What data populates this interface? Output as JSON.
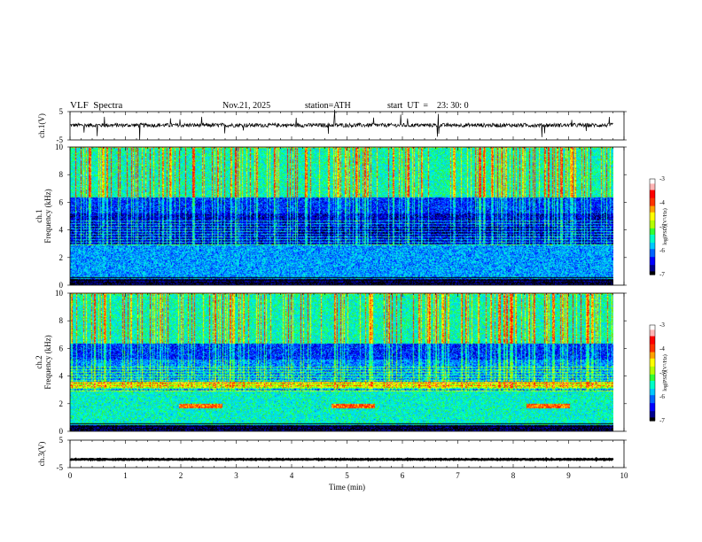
{
  "header": {
    "title": "VLF  Spectra",
    "date": "Nov.21, 2025",
    "station": "station=ATH",
    "start": "start  UT  =    23: 30: 0"
  },
  "chart_data": {
    "type": "heatmap",
    "title": "VLF  Spectra",
    "xlabel": "Time  (min)",
    "xlim": [
      0,
      10
    ],
    "xticks": [
      "0",
      "1",
      "2",
      "3",
      "4",
      "5",
      "6",
      "7",
      "8",
      "9",
      "10"
    ],
    "data_end_min": 9.8,
    "panels": [
      {
        "id": "ch1-voltage",
        "kind": "line",
        "ylabel": "ch.1(V)",
        "ylim": [
          -5,
          5
        ],
        "yticks": [
          "5",
          "-5"
        ],
        "baseline_v": 0.2
      },
      {
        "id": "ch1-spectrogram",
        "kind": "heatmap",
        "ylabel_top": "ch.1",
        "ylabel": "Frequency  (kHz)",
        "ylim": [
          0,
          10
        ],
        "yticks": [
          "10",
          "8",
          "6",
          "4",
          "2",
          "0"
        ],
        "colorbar": {
          "label": "log(PSD)(V²/Hz)",
          "range": [
            -7,
            -3
          ],
          "ticks": [
            "-3",
            "-4",
            "-5",
            "-6",
            "-7"
          ]
        }
      },
      {
        "id": "ch2-spectrogram",
        "kind": "heatmap",
        "ylabel_top": "ch.2",
        "ylabel": "Frequency  (kHz)",
        "ylim": [
          0,
          10
        ],
        "yticks": [
          "10",
          "8",
          "6",
          "4",
          "2",
          "0"
        ],
        "colorbar": {
          "label": "log(PSD)(V²/Hz)",
          "range": [
            -7,
            -3
          ],
          "ticks": [
            "-3",
            "-4",
            "-5",
            "-6",
            "-7"
          ]
        }
      },
      {
        "id": "ch3-voltage",
        "kind": "line",
        "ylabel": "ch.3(V)",
        "ylim": [
          -5,
          5
        ],
        "yticks": [
          "5",
          "-5"
        ],
        "baseline_v": -2
      }
    ],
    "colors": {
      "palette": [
        "#000000",
        "#00008c",
        "#0000ff",
        "#0064ff",
        "#00c8ff",
        "#00ffc8",
        "#32ff32",
        "#b4ff00",
        "#ffff00",
        "#ffa000",
        "#ff3200",
        "#ff0000",
        "#ffb4b4",
        "#ffffff"
      ]
    }
  }
}
